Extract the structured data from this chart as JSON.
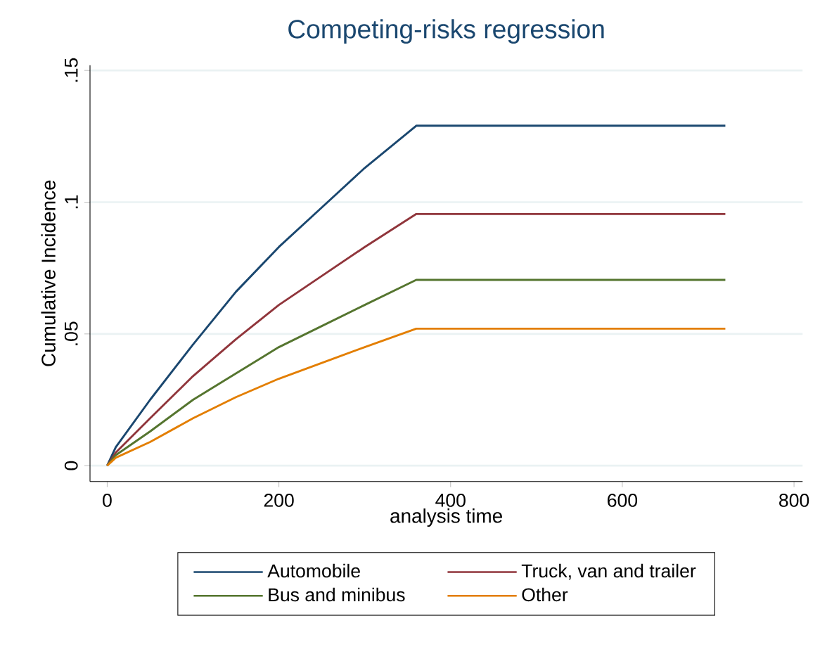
{
  "chart_data": {
    "type": "line",
    "title": "Competing-risks regression",
    "xlabel": "analysis time",
    "ylabel": "Cumulative Incidence",
    "x": [
      0,
      10,
      50,
      100,
      150,
      200,
      250,
      300,
      360,
      720
    ],
    "series": [
      {
        "name": "Automobile",
        "color": "#1a476f",
        "values": [
          0,
          0.007,
          0.025,
          0.046,
          0.066,
          0.083,
          0.098,
          0.113,
          0.129,
          0.129
        ]
      },
      {
        "name": "Truck, van and trailer",
        "color": "#90353b",
        "values": [
          0,
          0.005,
          0.018,
          0.034,
          0.048,
          0.061,
          0.072,
          0.083,
          0.0955,
          0.0955
        ]
      },
      {
        "name": "Bus and minibus",
        "color": "#55752f",
        "values": [
          0,
          0.004,
          0.013,
          0.025,
          0.035,
          0.045,
          0.053,
          0.061,
          0.0705,
          0.0705
        ]
      },
      {
        "name": "Other",
        "color": "#e37e00",
        "values": [
          0,
          0.003,
          0.009,
          0.018,
          0.026,
          0.033,
          0.039,
          0.045,
          0.052,
          0.052
        ]
      }
    ],
    "xlim": [
      -20,
      810
    ],
    "ylim": [
      -0.006,
      0.152
    ],
    "xticks": [
      0,
      200,
      400,
      600,
      800
    ],
    "yticks": [
      {
        "value": 0,
        "label": "0"
      },
      {
        "value": 0.05,
        "label": ".05"
      },
      {
        "value": 0.1,
        "label": ".1"
      },
      {
        "value": 0.15,
        "label": ".15"
      }
    ],
    "grid": "y",
    "legend": "bottom",
    "marker": "none",
    "line_style": "solid"
  }
}
